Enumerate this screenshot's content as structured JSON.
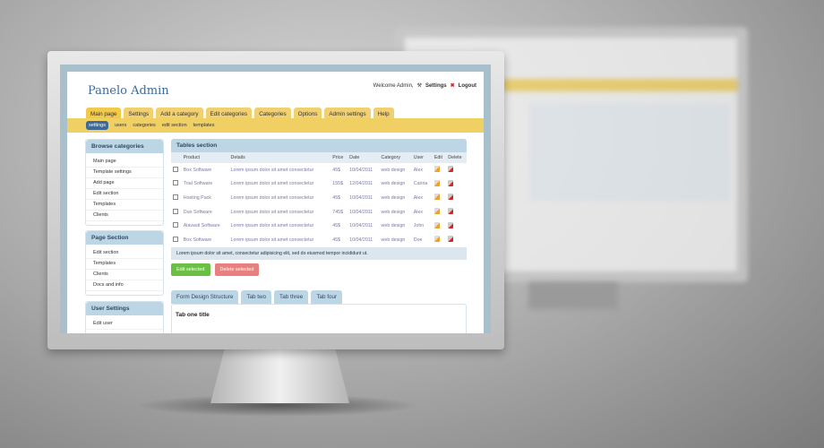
{
  "header": {
    "title": "Panelo Admin",
    "welcome": "Welcome Admin,",
    "settings": "Settings",
    "logout": "Logout"
  },
  "tabs": [
    "Main page",
    "Settings",
    "Add a category",
    "Edit categories",
    "Categories",
    "Options",
    "Admin settings",
    "Help"
  ],
  "subnav": [
    "settings",
    "users",
    "categories",
    "edit section",
    "templates"
  ],
  "sidebar": [
    {
      "title": "Browse categories",
      "items": [
        "Main page",
        "Template settings",
        "Add page",
        "Edit section",
        "Templates",
        "Clients"
      ]
    },
    {
      "title": "Page Section",
      "items": [
        "Edit section",
        "Templates",
        "Clients",
        "Docs and info"
      ]
    },
    {
      "title": "User Settings",
      "items": [
        "Edit user"
      ]
    }
  ],
  "table": {
    "title": "Tables section",
    "columns": [
      "",
      "Product",
      "Details",
      "Price",
      "Date",
      "Category",
      "User",
      "Edit",
      "Delete"
    ],
    "rows": [
      [
        "Box Software",
        "Lorem ipsum dolor sit amet consectetur",
        "45$",
        "10/04/2011",
        "web design",
        "Alex"
      ],
      [
        "Trial Software",
        "Lorem ipsum dolor sit amet consectetur",
        "155$",
        "12/04/2011",
        "web design",
        "Carina"
      ],
      [
        "Hosting Pack",
        "Lorem ipsum dolor sit amet consectetur",
        "45$",
        "10/04/2011",
        "web design",
        "Alex"
      ],
      [
        "Duo Software",
        "Lorem ipsum dolor sit amet consectetur",
        "745$",
        "10/04/2011",
        "web design",
        "Alex"
      ],
      [
        "Alavasti Software",
        "Lorem ipsum dolor sit amet consectetur",
        "45$",
        "10/04/2011",
        "web design",
        "John"
      ],
      [
        "Box Software",
        "Lorem ipsum dolor sit amet consectetur",
        "45$",
        "10/04/2011",
        "web design",
        "Doe"
      ]
    ],
    "footer": "Lorem ipsum dolor sit amet, consectetur adipisicing elit, sed do eiusmod tempor incididunt ut.",
    "edit_selected": "Edit selected",
    "delete_selected": "Delete selected"
  },
  "form_tabs": [
    "Form Design Structure",
    "Tab two",
    "Tab three",
    "Tab four"
  ],
  "tab_content_title": "Tab one title",
  "colors": {
    "accent": "#f0cf63",
    "header_blue": "#bcd6e6",
    "green": "#6cbf45",
    "red": "#e88080"
  }
}
